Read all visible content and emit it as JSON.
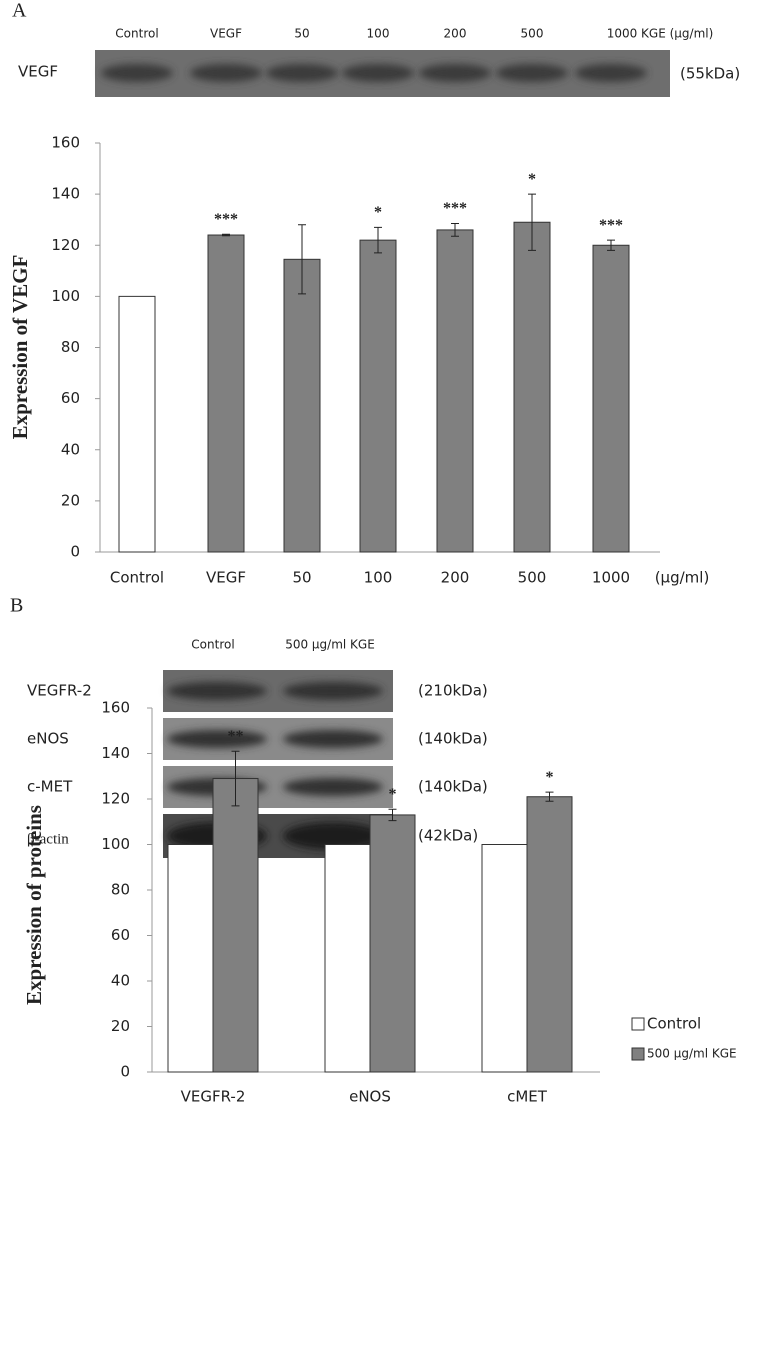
{
  "panel_a": {
    "label": "A",
    "lanes": [
      "Control",
      "VEGF",
      "50",
      "100",
      "200",
      "500",
      "1000 KGE (µg/ml)"
    ],
    "protein": "VEGF",
    "size": "(55kDa)"
  },
  "panel_b": {
    "label": "B",
    "lanes": [
      "Control",
      "500 µg/ml KGE"
    ],
    "rows": [
      {
        "protein": "VEGFR-2",
        "size": "(210kDa)"
      },
      {
        "protein": "eNOS",
        "size": "(140kDa)"
      },
      {
        "protein": "c-MET",
        "size": "(140kDa)"
      },
      {
        "protein": "β-actin",
        "size": "(42kDa)"
      }
    ]
  },
  "chart_data": [
    {
      "type": "bar",
      "y_label": "Expression of VEGF",
      "x_unit": "(µg/ml)",
      "categories": [
        "Control",
        "VEGF",
        "50",
        "100",
        "200",
        "500",
        "1000"
      ],
      "values": [
        100,
        124,
        114.5,
        122,
        126,
        129,
        120
      ],
      "errors": [
        null,
        0.3,
        13.5,
        5,
        2.5,
        11,
        2
      ],
      "annotations": [
        null,
        "***",
        null,
        "*",
        "***",
        "*",
        "***"
      ],
      "colors": [
        "#ffffff",
        "#808080",
        "#808080",
        "#808080",
        "#808080",
        "#808080",
        "#808080"
      ],
      "ylim": [
        0,
        160
      ],
      "yticks": [
        0,
        20,
        40,
        60,
        80,
        100,
        120,
        140,
        160
      ],
      "grid": false
    },
    {
      "type": "grouped-bar",
      "y_label": "Expression of proteins",
      "categories": [
        "VEGFR-2",
        "eNOS",
        "cMET"
      ],
      "series": [
        {
          "name": "Control",
          "color": "#ffffff",
          "values": [
            100,
            100,
            100
          ]
        },
        {
          "name": "500 µg/ml KGE",
          "color": "#808080",
          "values": [
            129,
            113,
            121
          ],
          "errors": [
            12,
            2.5,
            2
          ],
          "annotations": [
            "**",
            "*",
            "*"
          ]
        }
      ],
      "ylim": [
        0,
        160
      ],
      "yticks": [
        0,
        20,
        40,
        60,
        80,
        100,
        120,
        140,
        160
      ],
      "grid": false,
      "legend": "right"
    }
  ]
}
